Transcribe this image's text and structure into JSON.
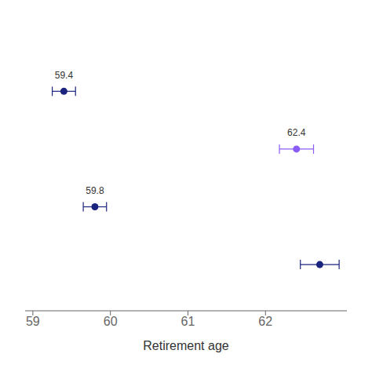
{
  "chart_data": {
    "type": "scatter",
    "xlabel": "Retirement age",
    "x": [
      59.4,
      62.4,
      59.8,
      62.7
    ],
    "y": [
      4,
      3,
      2,
      1
    ],
    "xerr_low": [
      0.15,
      0.22,
      0.15,
      0.25
    ],
    "xerr_high": [
      0.15,
      0.22,
      0.15,
      0.25
    ],
    "colors": [
      "#1a237e",
      "#8b5cf6",
      "#1a237e",
      "#1a237e"
    ],
    "value_labels": [
      "59.4",
      "62.4",
      "59.8",
      null
    ],
    "xlim": [
      58.9,
      63.05
    ],
    "xticks": [
      59,
      60,
      61,
      62
    ],
    "ylim": [
      0.2,
      5.2
    ],
    "tick_labels": "x",
    "grid": false
  }
}
